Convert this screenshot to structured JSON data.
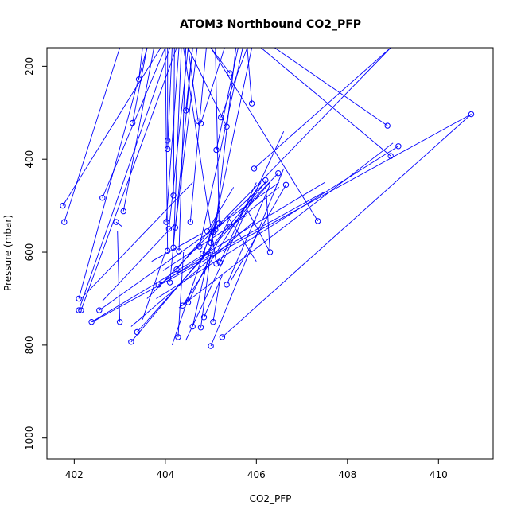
{
  "chart_data": {
    "type": "scatter",
    "title": "ATOM3 Northbound CO2_PFP",
    "xlabel": "CO2_PFP",
    "ylabel": "Pressure (mbar)",
    "xlim": [
      401.4,
      411.2
    ],
    "ylim": [
      1045,
      160
    ],
    "y_reversed": true,
    "xticks": [
      402,
      404,
      406,
      408,
      410
    ],
    "xtick_labels": [
      "402",
      "404",
      "406",
      "408",
      "410"
    ],
    "yticks": [
      200,
      400,
      600,
      800,
      1000
    ],
    "ytick_labels": [
      "200",
      "400",
      "600",
      "800",
      "1000"
    ],
    "series_color": "#0000ff",
    "points": [
      {
        "x": 401.75,
        "y": 500
      },
      {
        "x": 401.78,
        "y": 535
      },
      {
        "x": 402.1,
        "y": 700
      },
      {
        "x": 402.1,
        "y": 725
      },
      {
        "x": 402.15,
        "y": 725
      },
      {
        "x": 402.38,
        "y": 750
      },
      {
        "x": 402.55,
        "y": 725
      },
      {
        "x": 402.62,
        "y": 483
      },
      {
        "x": 402.92,
        "y": 535
      },
      {
        "x": 403.0,
        "y": 750
      },
      {
        "x": 403.08,
        "y": 512
      },
      {
        "x": 403.25,
        "y": 793
      },
      {
        "x": 403.28,
        "y": 322
      },
      {
        "x": 403.38,
        "y": 772
      },
      {
        "x": 403.42,
        "y": 228
      },
      {
        "x": 403.85,
        "y": 670
      },
      {
        "x": 404.02,
        "y": 535
      },
      {
        "x": 404.05,
        "y": 360
      },
      {
        "x": 404.05,
        "y": 378
      },
      {
        "x": 404.05,
        "y": 597
      },
      {
        "x": 404.08,
        "y": 550
      },
      {
        "x": 404.1,
        "y": 665
      },
      {
        "x": 404.18,
        "y": 478
      },
      {
        "x": 404.18,
        "y": 590
      },
      {
        "x": 404.22,
        "y": 547
      },
      {
        "x": 404.25,
        "y": 637
      },
      {
        "x": 404.28,
        "y": 783
      },
      {
        "x": 404.3,
        "y": 598
      },
      {
        "x": 404.38,
        "y": 715
      },
      {
        "x": 404.45,
        "y": 295
      },
      {
        "x": 404.5,
        "y": 708
      },
      {
        "x": 404.55,
        "y": 535
      },
      {
        "x": 404.6,
        "y": 760
      },
      {
        "x": 404.72,
        "y": 318
      },
      {
        "x": 404.75,
        "y": 588
      },
      {
        "x": 404.78,
        "y": 323
      },
      {
        "x": 404.78,
        "y": 762
      },
      {
        "x": 404.82,
        "y": 603
      },
      {
        "x": 404.85,
        "y": 740
      },
      {
        "x": 404.92,
        "y": 555
      },
      {
        "x": 405.0,
        "y": 802
      },
      {
        "x": 405.0,
        "y": 580
      },
      {
        "x": 405.05,
        "y": 750
      },
      {
        "x": 405.05,
        "y": 557
      },
      {
        "x": 405.1,
        "y": 552
      },
      {
        "x": 405.12,
        "y": 380
      },
      {
        "x": 405.12,
        "y": 625
      },
      {
        "x": 405.18,
        "y": 538
      },
      {
        "x": 405.2,
        "y": 622
      },
      {
        "x": 405.22,
        "y": 310
      },
      {
        "x": 405.25,
        "y": 783
      },
      {
        "x": 405.35,
        "y": 330
      },
      {
        "x": 405.35,
        "y": 670
      },
      {
        "x": 405.42,
        "y": 545
      },
      {
        "x": 405.42,
        "y": 215
      },
      {
        "x": 405.9,
        "y": 280
      },
      {
        "x": 405.95,
        "y": 420
      },
      {
        "x": 406.2,
        "y": 445
      },
      {
        "x": 406.3,
        "y": 600
      },
      {
        "x": 406.48,
        "y": 430
      },
      {
        "x": 406.65,
        "y": 455
      },
      {
        "x": 407.35,
        "y": 533
      },
      {
        "x": 408.88,
        "y": 328
      },
      {
        "x": 408.95,
        "y": 393
      },
      {
        "x": 409.12,
        "y": 372
      },
      {
        "x": 410.72,
        "y": 303
      }
    ],
    "segments": [
      [
        401.75,
        500,
        403.9,
        160
      ],
      [
        401.78,
        535,
        403.0,
        160
      ],
      [
        402.1,
        700,
        403.6,
        160
      ],
      [
        402.1,
        725,
        404.1,
        160
      ],
      [
        402.15,
        725,
        404.25,
        160
      ],
      [
        402.38,
        750,
        407.5,
        450
      ],
      [
        402.55,
        725,
        406.5,
        450
      ],
      [
        402.62,
        483,
        404.0,
        160
      ],
      [
        402.92,
        535,
        403.05,
        545
      ],
      [
        403.0,
        750,
        402.95,
        555
      ],
      [
        403.08,
        512,
        403.75,
        160
      ],
      [
        403.25,
        793,
        406.2,
        450
      ],
      [
        403.28,
        322,
        403.6,
        160
      ],
      [
        403.38,
        772,
        406.3,
        450
      ],
      [
        403.42,
        228,
        403.5,
        160
      ],
      [
        403.85,
        670,
        405.0,
        600
      ],
      [
        404.02,
        535,
        404.3,
        160
      ],
      [
        404.05,
        360,
        404.05,
        160
      ],
      [
        404.05,
        378,
        404.15,
        160
      ],
      [
        404.05,
        597,
        404.0,
        160
      ],
      [
        404.08,
        550,
        404.5,
        160
      ],
      [
        404.1,
        665,
        404.6,
        160
      ],
      [
        404.18,
        478,
        404.2,
        160
      ],
      [
        404.18,
        590,
        404.35,
        160
      ],
      [
        404.22,
        547,
        404.7,
        160
      ],
      [
        404.25,
        637,
        405.0,
        550
      ],
      [
        404.28,
        783,
        404.4,
        600
      ],
      [
        404.3,
        598,
        404.45,
        160
      ],
      [
        404.38,
        715,
        406.1,
        450
      ],
      [
        404.45,
        295,
        404.6,
        160
      ],
      [
        404.5,
        708,
        405.4,
        530
      ],
      [
        404.55,
        535,
        404.9,
        160
      ],
      [
        404.6,
        760,
        405.15,
        520
      ],
      [
        404.72,
        318,
        404.5,
        160
      ],
      [
        404.75,
        588,
        405.7,
        160
      ],
      [
        404.78,
        323,
        405.3,
        160
      ],
      [
        404.78,
        762,
        405.0,
        600
      ],
      [
        404.82,
        603,
        405.1,
        540
      ],
      [
        404.85,
        740,
        405.25,
        650
      ],
      [
        404.92,
        555,
        405.5,
        460
      ],
      [
        405.0,
        802,
        406.6,
        420
      ],
      [
        405.0,
        580,
        405.9,
        160
      ],
      [
        405.05,
        750,
        405.2,
        660
      ],
      [
        405.05,
        557,
        406.2,
        450
      ],
      [
        405.1,
        552,
        405.55,
        160
      ],
      [
        405.12,
        380,
        405.6,
        160
      ],
      [
        405.12,
        625,
        404.4,
        160
      ],
      [
        405.18,
        538,
        405.1,
        160
      ],
      [
        405.2,
        622,
        406.0,
        450
      ],
      [
        405.22,
        310,
        405.8,
        160
      ],
      [
        405.25,
        783,
        410.72,
        303
      ],
      [
        405.35,
        330,
        404.5,
        160
      ],
      [
        405.35,
        670,
        406.3,
        455
      ],
      [
        405.42,
        545,
        406.5,
        460
      ],
      [
        405.42,
        215,
        405.0,
        160
      ],
      [
        405.9,
        280,
        405.8,
        160
      ],
      [
        405.95,
        420,
        408.95,
        160
      ],
      [
        406.2,
        445,
        406.3,
        600
      ],
      [
        406.3,
        600,
        405.75,
        500
      ],
      [
        406.48,
        430,
        405.6,
        520
      ],
      [
        406.65,
        455,
        405.45,
        660
      ],
      [
        407.35,
        533,
        405.0,
        160
      ],
      [
        408.88,
        328,
        406.4,
        160
      ],
      [
        408.95,
        393,
        406.1,
        160
      ],
      [
        409.12,
        372,
        403.8,
        700
      ],
      [
        410.72,
        303,
        402.4,
        750
      ],
      [
        403.6,
        700,
        408.95,
        160
      ],
      [
        402.15,
        700,
        404.6,
        450
      ],
      [
        402.62,
        705,
        404.2,
        540
      ],
      [
        403.25,
        760,
        406.0,
        530
      ],
      [
        403.5,
        745,
        404.0,
        600
      ],
      [
        404.0,
        660,
        407.5,
        470
      ],
      [
        404.3,
        720,
        409.0,
        365
      ],
      [
        403.95,
        640,
        405.8,
        520
      ],
      [
        404.15,
        800,
        405.2,
        500
      ],
      [
        404.45,
        790,
        406.6,
        340
      ],
      [
        405.35,
        520,
        406.0,
        620
      ],
      [
        403.7,
        620,
        404.8,
        560
      ]
    ]
  }
}
